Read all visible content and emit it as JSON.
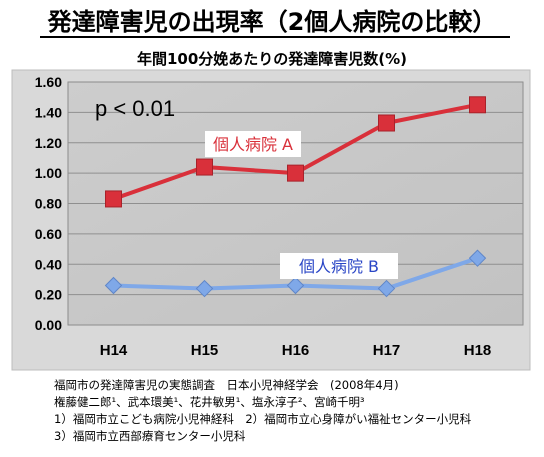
{
  "title": "発達障害児の出現率（2個人病院の比較）",
  "chart_data": {
    "type": "line",
    "title": "年間100分娩あたりの発達障害児数(%)",
    "categories": [
      "H14",
      "H15",
      "H16",
      "H17",
      "H18"
    ],
    "ylim": [
      0,
      1.6
    ],
    "yticks": [
      "0.00",
      "0.20",
      "0.40",
      "0.60",
      "0.80",
      "1.00",
      "1.20",
      "1.40",
      "1.60"
    ],
    "grid": true,
    "annotation": "p < 0.01",
    "series": [
      {
        "name": "個人病院 A",
        "values": [
          0.83,
          1.04,
          1.0,
          1.33,
          1.45
        ],
        "color": "#d9303a",
        "marker": "square"
      },
      {
        "name": "個人病院 B",
        "values": [
          0.26,
          0.24,
          0.26,
          0.24,
          0.44
        ],
        "color": "#7fa8e8",
        "marker": "diamond"
      }
    ],
    "plot_bg": "#c9c9c9"
  },
  "notes": [
    "福岡市の発達障害児の実態調査　日本小児神経学会　(2008年4月)",
    "権藤健二郎¹、武本環美¹、花井敏男¹、塩永淳子²、宮崎千明³",
    "1）福岡市立こども病院小児神経科　2）福岡市立心身障がい福祉センター小児科",
    "3）福岡市立西部療育センター小児科"
  ]
}
